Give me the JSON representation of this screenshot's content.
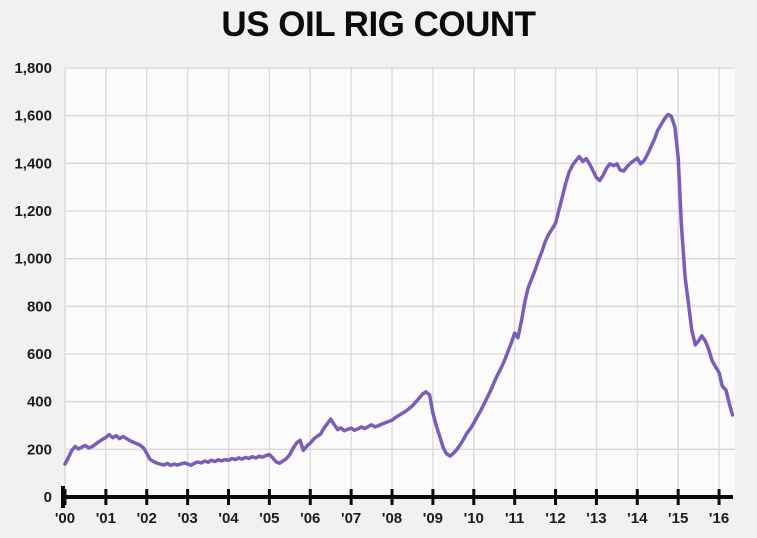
{
  "page": {
    "background": "#f1f1f2",
    "plot_background": "#fbfbfb",
    "grid_color": "#d9d9da"
  },
  "chart_data": {
    "type": "line",
    "title": "US OIL RIG COUNT",
    "series_name": "US oil rig count",
    "line_color": "#7a5db8",
    "axis_color": "#0a0a0a",
    "grid": true,
    "legend": "none",
    "ylim": [
      0,
      1800
    ],
    "xlim": [
      2000,
      2016.39
    ],
    "y_ticks": [
      0,
      200,
      400,
      600,
      800,
      1000,
      1200,
      1400,
      1600,
      1800
    ],
    "y_tick_labels": [
      "0",
      "200",
      "400",
      "600",
      "800",
      "1,000",
      "1,200",
      "1,400",
      "1,600",
      "1,800"
    ],
    "x_tick_years": [
      2000,
      2001,
      2002,
      2003,
      2004,
      2005,
      2006,
      2007,
      2008,
      2009,
      2010,
      2011,
      2012,
      2013,
      2014,
      2015,
      2016
    ],
    "x_tick_labels": [
      "'00",
      "'01",
      "'02",
      "'03",
      "'04",
      "'05",
      "'06",
      "'07",
      "'08",
      "'09",
      "'10",
      "'11",
      "'12",
      "'13",
      "'14",
      "'15",
      "'16"
    ],
    "points": [
      [
        2000.0,
        138
      ],
      [
        2000.08,
        165
      ],
      [
        2000.17,
        196
      ],
      [
        2000.25,
        212
      ],
      [
        2000.33,
        202
      ],
      [
        2000.42,
        210
      ],
      [
        2000.5,
        216
      ],
      [
        2000.58,
        206
      ],
      [
        2000.67,
        212
      ],
      [
        2000.75,
        222
      ],
      [
        2000.83,
        232
      ],
      [
        2000.92,
        242
      ],
      [
        2001.0,
        250
      ],
      [
        2001.08,
        262
      ],
      [
        2001.17,
        249
      ],
      [
        2001.25,
        257
      ],
      [
        2001.33,
        245
      ],
      [
        2001.42,
        254
      ],
      [
        2001.5,
        246
      ],
      [
        2001.58,
        237
      ],
      [
        2001.67,
        230
      ],
      [
        2001.75,
        224
      ],
      [
        2001.83,
        218
      ],
      [
        2001.92,
        206
      ],
      [
        2002.0,
        183
      ],
      [
        2002.08,
        158
      ],
      [
        2002.17,
        148
      ],
      [
        2002.25,
        142
      ],
      [
        2002.33,
        138
      ],
      [
        2002.42,
        134
      ],
      [
        2002.5,
        141
      ],
      [
        2002.58,
        133
      ],
      [
        2002.67,
        138
      ],
      [
        2002.75,
        134
      ],
      [
        2002.83,
        139
      ],
      [
        2002.92,
        143
      ],
      [
        2003.0,
        139
      ],
      [
        2003.08,
        133
      ],
      [
        2003.17,
        142
      ],
      [
        2003.25,
        147
      ],
      [
        2003.33,
        143
      ],
      [
        2003.42,
        151
      ],
      [
        2003.5,
        146
      ],
      [
        2003.58,
        154
      ],
      [
        2003.67,
        149
      ],
      [
        2003.75,
        156
      ],
      [
        2003.83,
        152
      ],
      [
        2003.92,
        157
      ],
      [
        2004.0,
        154
      ],
      [
        2004.08,
        161
      ],
      [
        2004.17,
        157
      ],
      [
        2004.25,
        164
      ],
      [
        2004.33,
        159
      ],
      [
        2004.42,
        166
      ],
      [
        2004.5,
        162
      ],
      [
        2004.58,
        169
      ],
      [
        2004.67,
        164
      ],
      [
        2004.75,
        171
      ],
      [
        2004.83,
        167
      ],
      [
        2004.92,
        174
      ],
      [
        2005.0,
        178
      ],
      [
        2005.08,
        164
      ],
      [
        2005.17,
        147
      ],
      [
        2005.25,
        142
      ],
      [
        2005.33,
        151
      ],
      [
        2005.42,
        162
      ],
      [
        2005.5,
        178
      ],
      [
        2005.58,
        205
      ],
      [
        2005.67,
        228
      ],
      [
        2005.75,
        238
      ],
      [
        2005.83,
        196
      ],
      [
        2005.92,
        214
      ],
      [
        2006.0,
        226
      ],
      [
        2006.08,
        242
      ],
      [
        2006.17,
        255
      ],
      [
        2006.25,
        264
      ],
      [
        2006.33,
        288
      ],
      [
        2006.42,
        308
      ],
      [
        2006.5,
        327
      ],
      [
        2006.58,
        305
      ],
      [
        2006.67,
        283
      ],
      [
        2006.75,
        290
      ],
      [
        2006.83,
        278
      ],
      [
        2006.92,
        284
      ],
      [
        2007.0,
        289
      ],
      [
        2007.08,
        280
      ],
      [
        2007.17,
        286
      ],
      [
        2007.25,
        294
      ],
      [
        2007.33,
        287
      ],
      [
        2007.42,
        296
      ],
      [
        2007.5,
        303
      ],
      [
        2007.58,
        294
      ],
      [
        2007.67,
        299
      ],
      [
        2007.75,
        306
      ],
      [
        2007.83,
        311
      ],
      [
        2007.92,
        317
      ],
      [
        2008.0,
        322
      ],
      [
        2008.08,
        333
      ],
      [
        2008.17,
        343
      ],
      [
        2008.25,
        351
      ],
      [
        2008.33,
        359
      ],
      [
        2008.42,
        371
      ],
      [
        2008.5,
        383
      ],
      [
        2008.58,
        398
      ],
      [
        2008.67,
        416
      ],
      [
        2008.75,
        432
      ],
      [
        2008.83,
        441
      ],
      [
        2008.92,
        428
      ],
      [
        2009.0,
        352
      ],
      [
        2009.08,
        300
      ],
      [
        2009.17,
        252
      ],
      [
        2009.25,
        208
      ],
      [
        2009.33,
        182
      ],
      [
        2009.42,
        172
      ],
      [
        2009.5,
        183
      ],
      [
        2009.58,
        198
      ],
      [
        2009.67,
        220
      ],
      [
        2009.75,
        243
      ],
      [
        2009.83,
        267
      ],
      [
        2009.92,
        288
      ],
      [
        2010.0,
        310
      ],
      [
        2010.08,
        336
      ],
      [
        2010.17,
        362
      ],
      [
        2010.25,
        390
      ],
      [
        2010.33,
        418
      ],
      [
        2010.42,
        450
      ],
      [
        2010.5,
        482
      ],
      [
        2010.58,
        512
      ],
      [
        2010.67,
        542
      ],
      [
        2010.75,
        572
      ],
      [
        2010.83,
        608
      ],
      [
        2010.92,
        648
      ],
      [
        2011.0,
        688
      ],
      [
        2011.08,
        668
      ],
      [
        2011.17,
        742
      ],
      [
        2011.25,
        820
      ],
      [
        2011.33,
        878
      ],
      [
        2011.42,
        916
      ],
      [
        2011.5,
        952
      ],
      [
        2011.58,
        992
      ],
      [
        2011.67,
        1032
      ],
      [
        2011.75,
        1072
      ],
      [
        2011.83,
        1102
      ],
      [
        2011.92,
        1126
      ],
      [
        2012.0,
        1148
      ],
      [
        2012.08,
        1202
      ],
      [
        2012.17,
        1262
      ],
      [
        2012.25,
        1318
      ],
      [
        2012.33,
        1362
      ],
      [
        2012.42,
        1393
      ],
      [
        2012.5,
        1412
      ],
      [
        2012.58,
        1428
      ],
      [
        2012.67,
        1408
      ],
      [
        2012.75,
        1420
      ],
      [
        2012.83,
        1398
      ],
      [
        2012.92,
        1368
      ],
      [
        2013.0,
        1340
      ],
      [
        2013.08,
        1328
      ],
      [
        2013.17,
        1352
      ],
      [
        2013.25,
        1380
      ],
      [
        2013.33,
        1398
      ],
      [
        2013.42,
        1390
      ],
      [
        2013.5,
        1398
      ],
      [
        2013.58,
        1372
      ],
      [
        2013.67,
        1368
      ],
      [
        2013.75,
        1386
      ],
      [
        2013.83,
        1400
      ],
      [
        2013.92,
        1412
      ],
      [
        2014.0,
        1422
      ],
      [
        2014.08,
        1398
      ],
      [
        2014.17,
        1412
      ],
      [
        2014.25,
        1438
      ],
      [
        2014.33,
        1468
      ],
      [
        2014.42,
        1502
      ],
      [
        2014.5,
        1538
      ],
      [
        2014.58,
        1562
      ],
      [
        2014.67,
        1588
      ],
      [
        2014.75,
        1605
      ],
      [
        2014.83,
        1598
      ],
      [
        2014.92,
        1552
      ],
      [
        2015.0,
        1422
      ],
      [
        2015.08,
        1140
      ],
      [
        2015.17,
        922
      ],
      [
        2015.25,
        815
      ],
      [
        2015.33,
        702
      ],
      [
        2015.42,
        638
      ],
      [
        2015.5,
        655
      ],
      [
        2015.58,
        676
      ],
      [
        2015.67,
        652
      ],
      [
        2015.75,
        618
      ],
      [
        2015.83,
        572
      ],
      [
        2015.92,
        545
      ],
      [
        2016.0,
        522
      ],
      [
        2016.08,
        465
      ],
      [
        2016.17,
        448
      ],
      [
        2016.25,
        392
      ],
      [
        2016.33,
        344
      ]
    ]
  }
}
